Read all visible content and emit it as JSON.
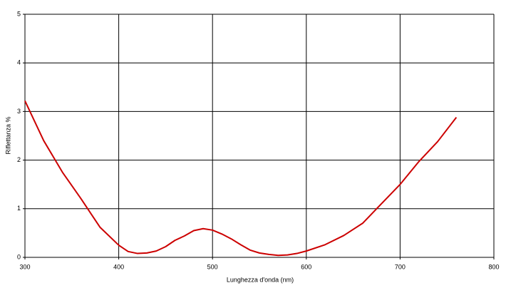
{
  "chart_data": {
    "type": "line",
    "x_label": "Lunghezza d'onda  (nm)",
    "y_label": "Riflettanza %",
    "x": [
      300,
      320,
      340,
      360,
      380,
      400,
      410,
      420,
      430,
      440,
      450,
      460,
      470,
      480,
      490,
      500,
      510,
      520,
      530,
      540,
      550,
      560,
      570,
      580,
      590,
      600,
      620,
      640,
      660,
      680,
      700,
      720,
      740,
      760
    ],
    "series": [
      {
        "color": "#cc0000",
        "values": [
          3.22,
          2.4,
          1.75,
          1.2,
          0.62,
          0.25,
          0.12,
          0.08,
          0.09,
          0.13,
          0.22,
          0.35,
          0.44,
          0.55,
          0.59,
          0.56,
          0.48,
          0.38,
          0.26,
          0.15,
          0.09,
          0.06,
          0.04,
          0.05,
          0.08,
          0.13,
          0.26,
          0.45,
          0.7,
          1.1,
          1.5,
          1.97,
          2.38,
          2.88
        ]
      }
    ],
    "xlim": [
      300,
      800
    ],
    "xticks": [
      300,
      400,
      500,
      600,
      700,
      800
    ],
    "ylim": [
      0,
      5
    ],
    "yticks": [
      0,
      1,
      2,
      3,
      4,
      5
    ],
    "grid": true
  }
}
